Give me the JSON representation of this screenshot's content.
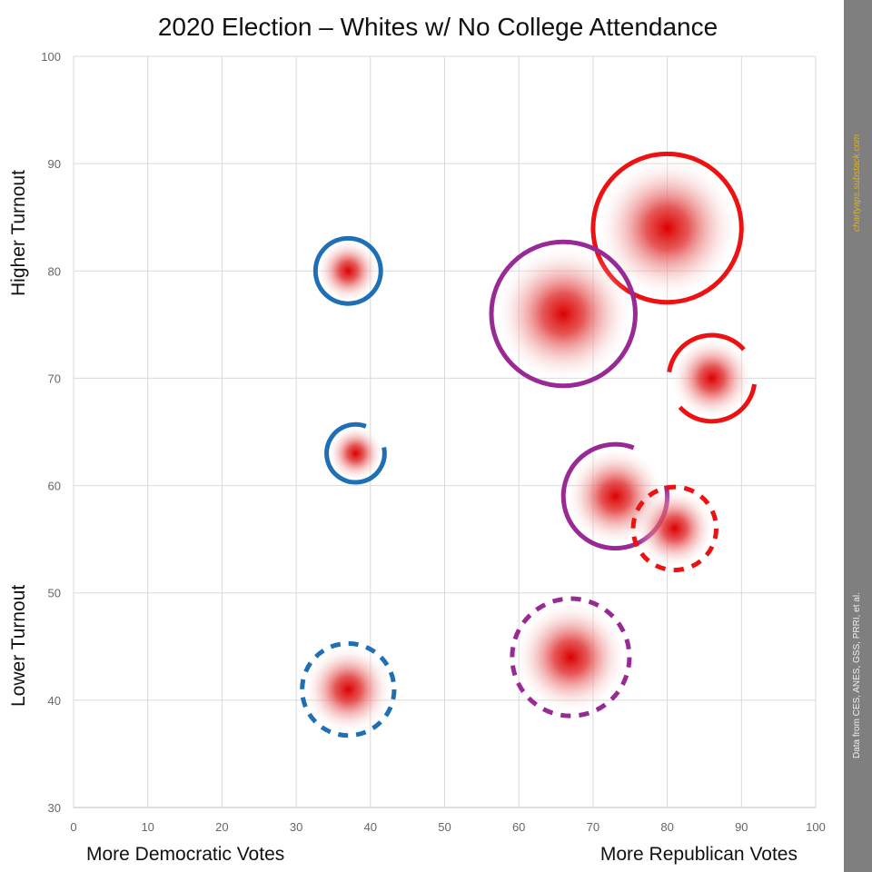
{
  "chart_data": {
    "type": "scatter",
    "title": "2020 Election – Whites w/ No College Attendance",
    "x_label_left": "More Democratic Votes",
    "x_label_right": "More Republican Votes",
    "y_label_top": "Higher Turnout",
    "y_label_bottom": "Lower Turnout",
    "xlim": [
      0,
      100
    ],
    "ylim": [
      30,
      100
    ],
    "x_ticks": [
      0,
      10,
      20,
      30,
      40,
      50,
      60,
      70,
      80,
      90,
      100
    ],
    "y_ticks": [
      30,
      40,
      50,
      60,
      70,
      80,
      90,
      100
    ],
    "grid": true,
    "side_note": "Data from CES, ANES, GSS, PRRI, et al.",
    "side_credit": "chartyaps.substack.com",
    "points": [
      {
        "x": 37,
        "y": 80,
        "size": 4.4,
        "ring_color": "#1f6fb4",
        "ring_style": "full"
      },
      {
        "x": 38,
        "y": 63,
        "size": 3.9,
        "ring_color": "#1f6fb4",
        "ring_style": "open"
      },
      {
        "x": 37,
        "y": 41,
        "size": 6.2,
        "ring_color": "#1f6fb4",
        "ring_style": "dashed"
      },
      {
        "x": 80,
        "y": 84,
        "size": 10.0,
        "ring_color": "#ee1111",
        "ring_style": "full"
      },
      {
        "x": 66,
        "y": 76,
        "size": 9.7,
        "ring_color": "#992a95",
        "ring_style": "full"
      },
      {
        "x": 86,
        "y": 70,
        "size": 5.8,
        "ring_color": "#ee1111",
        "ring_style": "broken"
      },
      {
        "x": 73,
        "y": 59,
        "size": 7.0,
        "ring_color": "#992a95",
        "ring_style": "open"
      },
      {
        "x": 81,
        "y": 56,
        "size": 5.6,
        "ring_color": "#ee1111",
        "ring_style": "dashed"
      },
      {
        "x": 67,
        "y": 44,
        "size": 7.9,
        "ring_color": "#992a95",
        "ring_style": "dashed"
      }
    ],
    "colors": {
      "grid": "#d9d9d9",
      "axis": "#bfbfbf",
      "side_bar": "#7f7f7f",
      "bubble_center": "#dd0000"
    }
  }
}
